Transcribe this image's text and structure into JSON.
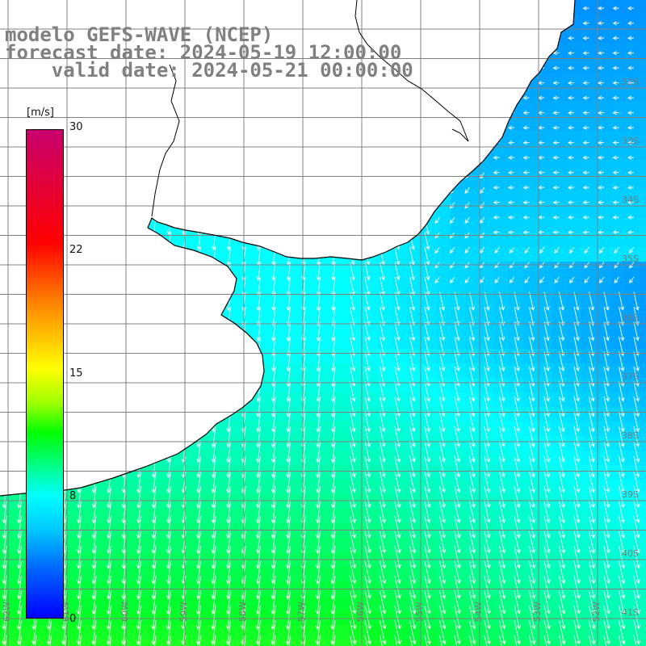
{
  "title": {
    "line1": "modelo GEFS-WAVE (NCEP)",
    "line2": "forecast date: 2024-05-19 12:00:00",
    "line3": "    valid date: 2024-05-21 00:00:00"
  },
  "colorbar": {
    "unit": "[m/s]",
    "labels": [
      "30",
      "22",
      "15",
      "8",
      "0"
    ],
    "value_range": [
      0,
      30
    ],
    "colors": [
      "#c8006e",
      "#ff0000",
      "#ff7f00",
      "#ffff00",
      "#00ff00",
      "#00ffff",
      "#0066ff",
      "#0000ff"
    ]
  },
  "map": {
    "variable": "wind speed and direction",
    "ocean_base_color": "#00ffff",
    "land_color": "#ffffff",
    "grid_color": "#808080",
    "coast_color": "#000000",
    "lat_labels": [
      "32S",
      "33S",
      "34S",
      "35S",
      "36S",
      "37S",
      "38S",
      "39S",
      "40S",
      "41S"
    ],
    "lon_labels": [
      "62W",
      "61W",
      "60W",
      "59W",
      "58W",
      "57W",
      "56W",
      "55W",
      "54W",
      "53W",
      "52W"
    ]
  }
}
